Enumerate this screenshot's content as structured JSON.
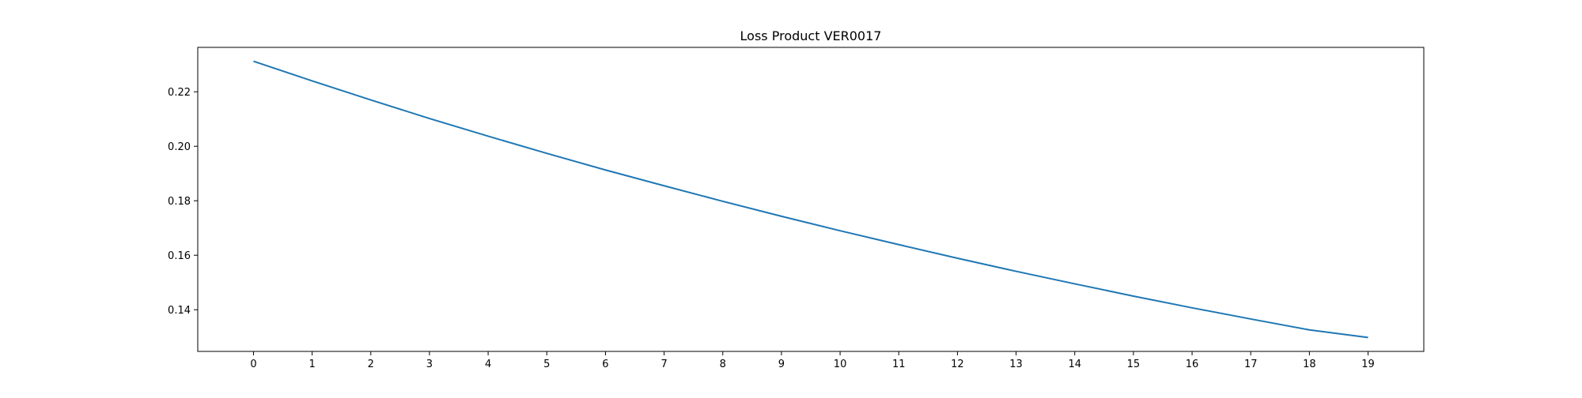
{
  "chart_data": {
    "type": "line",
    "title": "Loss Product VER0017",
    "xlabel": "",
    "ylabel": "",
    "x": [
      0,
      1,
      2,
      3,
      4,
      5,
      6,
      7,
      8,
      9,
      10,
      11,
      12,
      13,
      14,
      15,
      16,
      17,
      18,
      19
    ],
    "series": [
      {
        "values": [
          0.2312,
          0.224,
          0.217,
          0.2102,
          0.2037,
          0.1974,
          0.1913,
          0.1855,
          0.1798,
          0.1743,
          0.169,
          0.1639,
          0.1589,
          0.1541,
          0.1495,
          0.145,
          0.1407,
          0.1366,
          0.1326,
          0.1298
        ],
        "color": "#1f77b4"
      }
    ],
    "xticks": [
      0,
      1,
      2,
      3,
      4,
      5,
      6,
      7,
      8,
      9,
      10,
      11,
      12,
      13,
      14,
      15,
      16,
      17,
      18,
      19
    ],
    "yticks": [
      0.14,
      0.16,
      0.18,
      0.2,
      0.22
    ],
    "ytick_labels": [
      "0.14",
      "0.16",
      "0.18",
      "0.20",
      "0.22"
    ],
    "xlim": [
      -0.95,
      19.95
    ],
    "ylim": [
      0.1247,
      0.2363
    ],
    "grid": false,
    "legend": "none"
  }
}
